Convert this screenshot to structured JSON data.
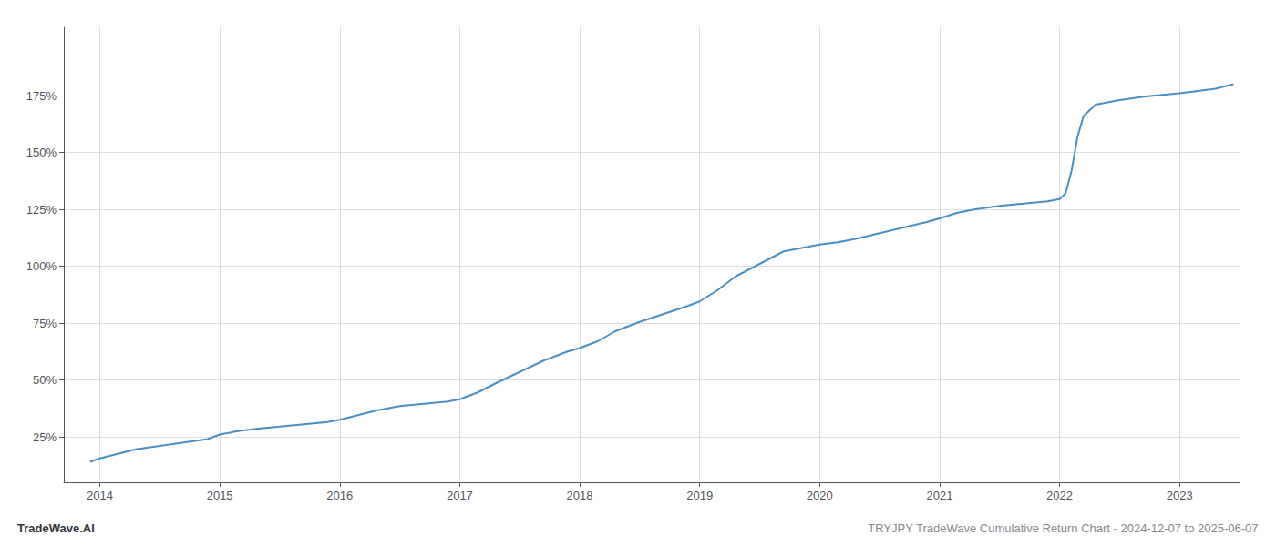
{
  "chart_data": {
    "type": "line",
    "title": "TRYJPY TradeWave Cumulative Return Chart - 2024-12-07 to 2025-06-07",
    "annotations": [
      "TradeWave.AI"
    ],
    "color": "#4a8fc4",
    "grid": true,
    "xlim": [
      2013.7,
      2023.5
    ],
    "xticks": [
      2014,
      2015,
      2016,
      2017,
      2018,
      2019,
      2020,
      2021,
      2022,
      2023
    ],
    "ylim": [
      0.05,
      2.05
    ],
    "yticks": [
      {
        "value": 0.25,
        "label": "25%"
      },
      {
        "value": 0.5,
        "label": "50%"
      },
      {
        "value": 0.75,
        "label": "75%"
      },
      {
        "value": 1.0,
        "label": "100%"
      },
      {
        "value": 1.25,
        "label": "125%"
      },
      {
        "value": 1.5,
        "label": "150%"
      },
      {
        "value": 1.75,
        "label": "175%"
      }
    ],
    "x": [
      2013.92,
      2014.0,
      2014.15,
      2014.3,
      2014.5,
      2014.7,
      2014.9,
      2015.0,
      2015.15,
      2015.3,
      2015.5,
      2015.7,
      2015.9,
      2016.0,
      2016.15,
      2016.3,
      2016.5,
      2016.7,
      2016.9,
      2017.0,
      2017.15,
      2017.3,
      2017.5,
      2017.7,
      2017.9,
      2018.0,
      2018.15,
      2018.3,
      2018.5,
      2018.7,
      2018.9,
      2019.0,
      2019.15,
      2019.3,
      2019.5,
      2019.7,
      2019.9,
      2020.0,
      2020.15,
      2020.3,
      2020.5,
      2020.7,
      2020.9,
      2021.0,
      2021.15,
      2021.3,
      2021.5,
      2021.7,
      2021.9,
      2022.0,
      2022.05,
      2022.1,
      2022.15,
      2022.2,
      2022.3,
      2022.5,
      2022.7,
      2022.9,
      2023.0,
      2023.15,
      2023.3,
      2023.45
    ],
    "values": [
      0.14,
      0.155,
      0.175,
      0.195,
      0.21,
      0.225,
      0.24,
      0.26,
      0.275,
      0.285,
      0.295,
      0.305,
      0.315,
      0.325,
      0.345,
      0.365,
      0.385,
      0.395,
      0.405,
      0.415,
      0.445,
      0.485,
      0.535,
      0.585,
      0.625,
      0.64,
      0.67,
      0.715,
      0.755,
      0.79,
      0.825,
      0.845,
      0.895,
      0.955,
      1.01,
      1.065,
      1.085,
      1.095,
      1.105,
      1.12,
      1.145,
      1.17,
      1.195,
      1.21,
      1.235,
      1.25,
      1.265,
      1.275,
      1.285,
      1.295,
      1.32,
      1.42,
      1.57,
      1.66,
      1.71,
      1.73,
      1.745,
      1.755,
      1.76,
      1.77,
      1.78,
      1.8
    ]
  }
}
